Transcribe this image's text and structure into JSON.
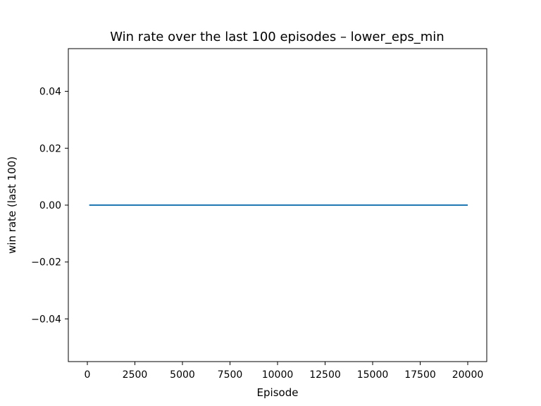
{
  "chart_data": {
    "type": "line",
    "title": "Win rate over the last 100 episodes – lower_eps_min",
    "xlabel": "Episode",
    "ylabel": "win rate (last 100)",
    "xlim": [
      -1000,
      21000
    ],
    "ylim": [
      -0.055,
      0.055
    ],
    "grid": false,
    "x_ticks": [
      0,
      2500,
      5000,
      7500,
      10000,
      12500,
      15000,
      17500,
      20000
    ],
    "x_tick_labels": [
      "0",
      "2500",
      "5000",
      "7500",
      "10000",
      "12500",
      "15000",
      "17500",
      "20000"
    ],
    "y_ticks": [
      -0.04,
      -0.02,
      0.0,
      0.02,
      0.04
    ],
    "y_tick_labels": [
      "−0.04",
      "−0.02",
      "0.00",
      "0.02",
      "0.04"
    ],
    "series": [
      {
        "color": "#1f77b4",
        "x": [
          100,
          20000
        ],
        "y": [
          0.0,
          0.0
        ]
      }
    ]
  }
}
